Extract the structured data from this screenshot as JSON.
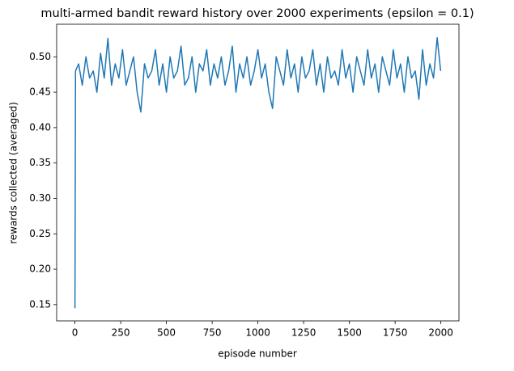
{
  "chart_data": {
    "type": "line",
    "title": "multi-armed bandit reward history over 2000 experiments (epsilon = 0.1)",
    "x_label": "episode number",
    "y_label": "rewards collected (averaged)",
    "x": [
      0,
      3,
      20,
      40,
      60,
      80,
      100,
      120,
      140,
      160,
      180,
      200,
      220,
      240,
      260,
      280,
      300,
      320,
      340,
      360,
      380,
      400,
      420,
      440,
      460,
      480,
      500,
      520,
      540,
      560,
      580,
      600,
      620,
      640,
      660,
      680,
      700,
      720,
      740,
      760,
      780,
      800,
      820,
      840,
      860,
      880,
      900,
      920,
      940,
      960,
      980,
      1000,
      1020,
      1040,
      1060,
      1080,
      1100,
      1120,
      1140,
      1160,
      1180,
      1200,
      1220,
      1240,
      1260,
      1280,
      1300,
      1320,
      1340,
      1360,
      1380,
      1400,
      1420,
      1440,
      1460,
      1480,
      1500,
      1520,
      1540,
      1560,
      1580,
      1600,
      1620,
      1640,
      1660,
      1680,
      1700,
      1720,
      1740,
      1760,
      1780,
      1800,
      1820,
      1840,
      1860,
      1880,
      1900,
      1920,
      1940,
      1960,
      1980,
      1999
    ],
    "series": [
      {
        "name": "reward",
        "color": "#1f77b4",
        "values": [
          0.145,
          0.48,
          0.49,
          0.46,
          0.5,
          0.47,
          0.48,
          0.45,
          0.505,
          0.47,
          0.526,
          0.46,
          0.49,
          0.47,
          0.51,
          0.46,
          0.48,
          0.5,
          0.45,
          0.422,
          0.49,
          0.47,
          0.48,
          0.51,
          0.46,
          0.49,
          0.45,
          0.5,
          0.47,
          0.48,
          0.515,
          0.46,
          0.47,
          0.5,
          0.45,
          0.49,
          0.48,
          0.51,
          0.46,
          0.49,
          0.47,
          0.5,
          0.46,
          0.48,
          0.515,
          0.45,
          0.49,
          0.47,
          0.5,
          0.46,
          0.48,
          0.51,
          0.47,
          0.49,
          0.45,
          0.427,
          0.5,
          0.48,
          0.46,
          0.51,
          0.47,
          0.49,
          0.45,
          0.5,
          0.47,
          0.48,
          0.51,
          0.46,
          0.49,
          0.45,
          0.5,
          0.47,
          0.48,
          0.46,
          0.51,
          0.47,
          0.49,
          0.45,
          0.5,
          0.48,
          0.46,
          0.51,
          0.47,
          0.49,
          0.45,
          0.5,
          0.48,
          0.46,
          0.51,
          0.47,
          0.49,
          0.45,
          0.5,
          0.47,
          0.48,
          0.44,
          0.51,
          0.46,
          0.49,
          0.47,
          0.527,
          0.48
        ]
      }
    ],
    "xlim": [
      -100,
      2099
    ],
    "ylim": [
      0.127,
      0.546
    ],
    "xticks": [
      0,
      250,
      500,
      750,
      1000,
      1250,
      1500,
      1750,
      2000
    ],
    "yticks": [
      0.15,
      {
        "value": 0.2,
        "label": "0.20"
      },
      0.25,
      {
        "value": 0.3,
        "label": "0.30"
      },
      0.35,
      {
        "value": 0.4,
        "label": "0.40"
      },
      0.45,
      {
        "value": 0.5,
        "label": "0.50"
      }
    ]
  }
}
